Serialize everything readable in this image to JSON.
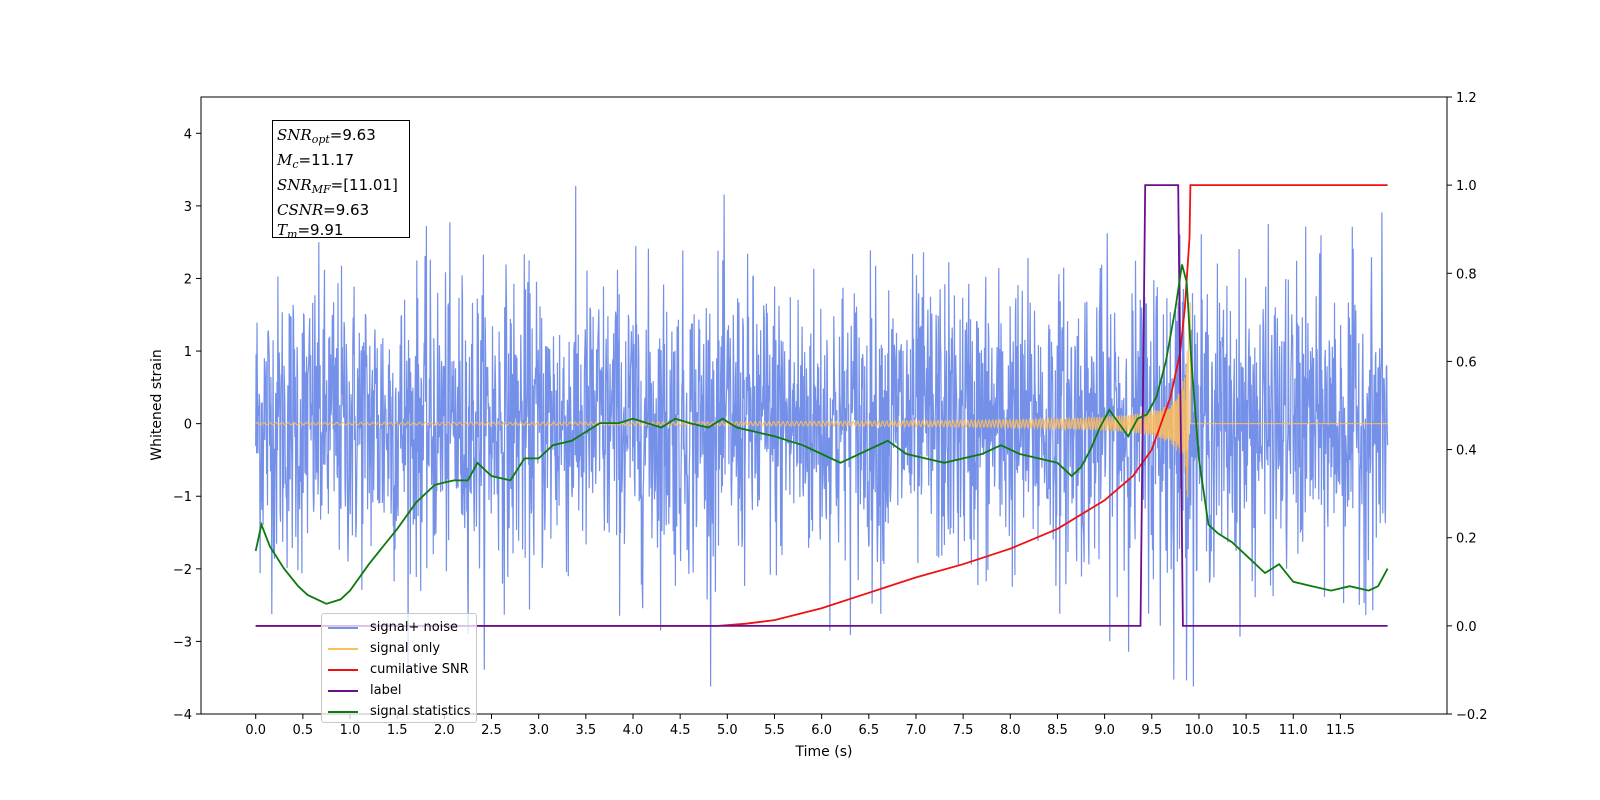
{
  "chart_data": {
    "type": "line",
    "xlabel": "Time (s)",
    "ylabel": "Whitened strain",
    "xlim": [
      -0.58,
      12.63
    ],
    "ylim": [
      -4.0,
      4.5
    ],
    "y2lim": [
      -0.2,
      1.2
    ],
    "x_ticks": [
      "0.0",
      "0.5",
      "1.0",
      "1.5",
      "2.0",
      "2.5",
      "3.0",
      "3.5",
      "4.0",
      "4.5",
      "5.0",
      "5.5",
      "6.0",
      "6.5",
      "7.0",
      "7.5",
      "8.0",
      "8.5",
      "9.0",
      "9.5",
      "10.0",
      "10.5",
      "11.0",
      "11.5"
    ],
    "y_ticks": [
      "−4",
      "−3",
      "−2",
      "−1",
      "0",
      "1",
      "2",
      "3",
      "4"
    ],
    "y2_ticks": [
      "−0.2",
      "0.0",
      "0.2",
      "0.4",
      "0.6",
      "0.8",
      "1.0",
      "1.2"
    ],
    "grid": false,
    "legend_position": "lower-left",
    "annotations": {
      "snr_opt": "9.63",
      "mc": "11.17",
      "snr_mf": "[11.01]",
      "csnr": "9.63",
      "tm": "9.91"
    },
    "series": [
      {
        "name": "signal+ noise",
        "color": "#7490e8",
        "axis": "left",
        "kind": "noise",
        "x_range": [
          0.0,
          12.0
        ],
        "amplitude_std": 1.0,
        "y_max": 4.12,
        "y_min": -3.62
      },
      {
        "name": "signal only",
        "color": "#ffbe5c",
        "axis": "left",
        "kind": "chirp",
        "x_range": [
          0.0,
          12.0
        ],
        "merger_time": 9.91,
        "peak_amplitude": 1.8
      },
      {
        "name": "cumilative SNR",
        "color": "#ee1111",
        "axis": "right",
        "x": [
          0.0,
          4.9,
          5.2,
          5.5,
          6.0,
          6.5,
          7.0,
          7.5,
          8.0,
          8.5,
          9.0,
          9.3,
          9.5,
          9.7,
          9.8,
          9.85,
          9.9,
          9.91,
          9.92,
          12.0
        ],
        "values": [
          0.0,
          0.0,
          0.005,
          0.013,
          0.04,
          0.075,
          0.11,
          0.14,
          0.175,
          0.22,
          0.285,
          0.34,
          0.4,
          0.52,
          0.62,
          0.72,
          0.88,
          1.0,
          1.0,
          1.0
        ]
      },
      {
        "name": "label",
        "color": "#6b0f8e",
        "axis": "right",
        "x": [
          0.0,
          9.38,
          9.43,
          9.78,
          9.83,
          12.0
        ],
        "values": [
          0.0,
          0.0,
          1.0,
          1.0,
          0.0,
          0.0
        ]
      },
      {
        "name": "signal statistics",
        "color": "#0e7a0e",
        "axis": "right",
        "x": [
          0.0,
          0.06,
          0.15,
          0.3,
          0.45,
          0.55,
          0.75,
          0.9,
          1.0,
          1.2,
          1.35,
          1.5,
          1.7,
          1.9,
          2.1,
          2.25,
          2.35,
          2.5,
          2.7,
          2.85,
          3.0,
          3.15,
          3.35,
          3.5,
          3.65,
          3.85,
          4.0,
          4.15,
          4.3,
          4.45,
          4.6,
          4.8,
          4.95,
          5.1,
          5.3,
          5.5,
          5.65,
          5.8,
          6.0,
          6.2,
          6.3,
          6.5,
          6.7,
          6.9,
          7.1,
          7.3,
          7.5,
          7.7,
          7.9,
          8.1,
          8.3,
          8.5,
          8.65,
          8.75,
          8.85,
          8.95,
          9.05,
          9.15,
          9.25,
          9.35,
          9.45,
          9.55,
          9.65,
          9.75,
          9.82,
          9.87,
          9.92,
          10.0,
          10.1,
          10.2,
          10.35,
          10.5,
          10.7,
          10.85,
          11.0,
          11.2,
          11.4,
          11.6,
          11.8,
          11.9,
          12.0
        ],
        "values": [
          0.17,
          0.23,
          0.18,
          0.13,
          0.09,
          0.07,
          0.05,
          0.06,
          0.08,
          0.14,
          0.18,
          0.22,
          0.28,
          0.32,
          0.33,
          0.33,
          0.37,
          0.34,
          0.33,
          0.38,
          0.38,
          0.41,
          0.42,
          0.44,
          0.46,
          0.46,
          0.47,
          0.46,
          0.45,
          0.47,
          0.46,
          0.45,
          0.47,
          0.45,
          0.44,
          0.43,
          0.42,
          0.41,
          0.39,
          0.37,
          0.38,
          0.4,
          0.42,
          0.39,
          0.38,
          0.37,
          0.38,
          0.39,
          0.41,
          0.39,
          0.38,
          0.37,
          0.34,
          0.36,
          0.4,
          0.45,
          0.49,
          0.46,
          0.43,
          0.47,
          0.48,
          0.52,
          0.6,
          0.72,
          0.82,
          0.78,
          0.6,
          0.38,
          0.23,
          0.21,
          0.19,
          0.16,
          0.12,
          0.14,
          0.1,
          0.09,
          0.08,
          0.09,
          0.08,
          0.09,
          0.13
        ]
      }
    ]
  }
}
